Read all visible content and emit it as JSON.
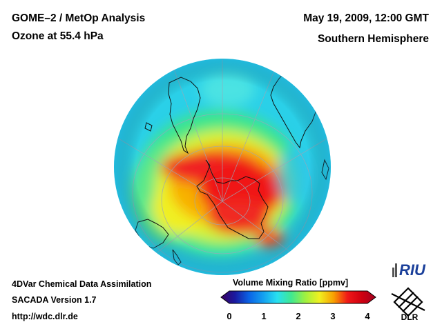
{
  "header": {
    "title_line1": "GOME–2 / MetOp Analysis",
    "title_line2": "Ozone at 55.4 hPa",
    "date": "May 19, 2009, 12:00 GMT",
    "region": "Southern Hemisphere"
  },
  "footer": {
    "line1": "4DVar Chemical Data Assimilation",
    "line2": "SACADA Version 1.7",
    "line3": "http://wdc.dlr.de"
  },
  "colorbar": {
    "title": "Volume Mixing Ratio [ppmv]",
    "min": 0,
    "max": 4,
    "ticks": [
      "0",
      "1",
      "2",
      "3",
      "4"
    ],
    "stops": [
      "#3a0060",
      "#1a1aa0",
      "#0a64e6",
      "#14a0f0",
      "#28e0f0",
      "#40e890",
      "#a0f040",
      "#f0f020",
      "#f8a000",
      "#f01818",
      "#d00010",
      "#a00020"
    ]
  },
  "map": {
    "projection": "orthographic",
    "center": "South Pole",
    "background_color": "#2ad0e8",
    "ozone_max_region": "Antarctica / Antarctic Peninsula"
  },
  "logos": {
    "riu": "RIU",
    "dlr": "DLR"
  }
}
